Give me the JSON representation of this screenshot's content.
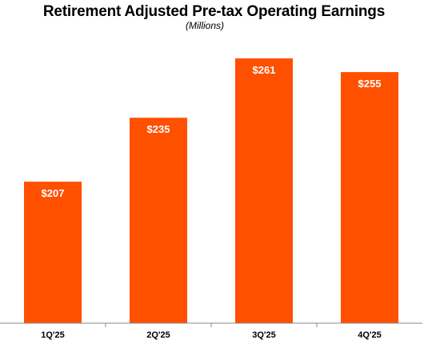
{
  "chart_data": {
    "type": "bar",
    "title": "Retirement Adjusted Pre-tax Operating Earnings",
    "subtitle": "(Millions)",
    "categories": [
      "1Q'25",
      "2Q'25",
      "3Q'25",
      "4Q'25"
    ],
    "values": [
      207,
      235,
      261,
      255
    ],
    "value_labels": [
      "$207",
      "$235",
      "$261",
      "$255"
    ],
    "xlabel": "",
    "ylabel": "",
    "ylim": [
      160,
      270
    ],
    "grid": false,
    "bar_color": "#FF5000",
    "axis_color": "#888888"
  }
}
